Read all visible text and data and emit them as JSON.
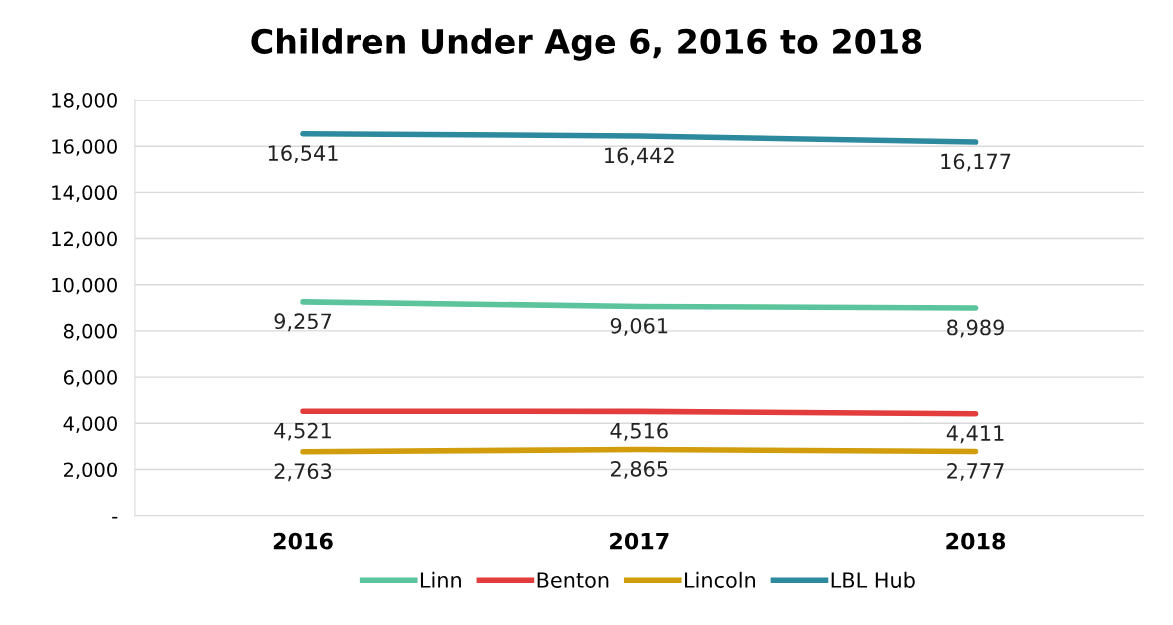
{
  "chart_data": {
    "type": "line",
    "title": "Children Under Age 6, 2016 to 2018",
    "categories": [
      "2016",
      "2017",
      "2018"
    ],
    "series": [
      {
        "name": "Linn",
        "color": "#5cc49c",
        "values": [
          9257,
          9061,
          8989
        ],
        "value_labels": [
          "9,257",
          "9,061",
          "8,989"
        ]
      },
      {
        "name": "Benton",
        "color": "#e23c3c",
        "values": [
          4521,
          4516,
          4411
        ],
        "value_labels": [
          "4,521",
          "4,516",
          "4,411"
        ]
      },
      {
        "name": "Lincoln",
        "color": "#d19d0c",
        "values": [
          2763,
          2865,
          2777
        ],
        "value_labels": [
          "2,763",
          "2,865",
          "2,777"
        ]
      },
      {
        "name": "LBL Hub",
        "color": "#2d8a9e",
        "values": [
          16541,
          16442,
          16177
        ],
        "value_labels": [
          "16,541",
          "16,442",
          "16,177"
        ]
      }
    ],
    "ylim": [
      0,
      18000
    ],
    "yticks": [
      {
        "value": 0,
        "label": "-"
      },
      {
        "value": 2000,
        "label": "2,000"
      },
      {
        "value": 4000,
        "label": "4,000"
      },
      {
        "value": 6000,
        "label": "6,000"
      },
      {
        "value": 8000,
        "label": "8,000"
      },
      {
        "value": 10000,
        "label": "10,000"
      },
      {
        "value": 12000,
        "label": "12,000"
      },
      {
        "value": 14000,
        "label": "14,000"
      },
      {
        "value": 16000,
        "label": "16,000"
      },
      {
        "value": 18000,
        "label": "18,000"
      }
    ],
    "grid": "y",
    "legend": "bottom",
    "marker": "none",
    "line_style": "solid"
  }
}
